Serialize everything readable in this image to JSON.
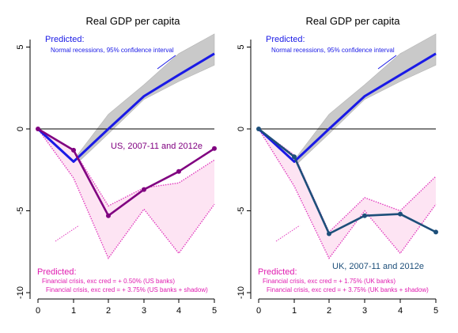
{
  "colors": {
    "band_fill": "#c9c9c9",
    "band_edge": "#b4b4b4",
    "predicted_normal": "#1a1ae6",
    "crisis_fill": "#fde4f3",
    "crisis_edge": "#e23dbf",
    "crisis_text": "#e01bb0",
    "us_series": "#800080",
    "uk_series": "#1d4f7a",
    "axis": "#000000"
  },
  "chart_data": [
    {
      "type": "line",
      "title": "Real GDP per capita",
      "x": [
        0,
        1,
        2,
        3,
        4,
        5
      ],
      "xticks": [
        "0",
        "1",
        "2",
        "3",
        "4",
        "5"
      ],
      "yticks": [
        "5",
        "0",
        "-5",
        "-10"
      ],
      "ylim": [
        -10,
        6
      ],
      "xlim": [
        0,
        5
      ],
      "zero_line": true,
      "normal_band": {
        "lower": [
          0,
          -2.3,
          -0.3,
          1.8,
          2.9,
          3.9
        ],
        "upper": [
          0,
          -1.9,
          0.9,
          2.7,
          4.6,
          5.8
        ]
      },
      "normal_recession": [
        0,
        -2.0,
        0,
        2.0,
        3.3,
        4.6
      ],
      "crisis_band": {
        "lower": [
          0,
          -3.0,
          -7.9,
          -4.9,
          -7.6,
          -4.6
        ],
        "upper": [
          0,
          -1.3,
          -4.7,
          -3.6,
          -3.3,
          -1.9
        ]
      },
      "series": [
        {
          "name": "US, 2007-11 and 2012e",
          "values": [
            0,
            -1.3,
            -5.3,
            -3.7,
            -2.6,
            -1.2
          ]
        }
      ],
      "predicted_title": "Predicted:",
      "predicted_subtitle": "Normal recessions, 95% confidence interval",
      "series_label": "US, 2007-11 and 2012e",
      "crisis_title": "Predicted:",
      "crisis_line1": "Financial crisis, exc cred = + 0.50% (US banks)",
      "crisis_line2": "Financial crisis, exc cred = + 3.75% (US banks + shadow)"
    },
    {
      "type": "line",
      "title": "Real GDP per capita",
      "x": [
        0,
        1,
        2,
        3,
        4,
        5
      ],
      "xticks": [
        "0",
        "1",
        "2",
        "3",
        "4",
        "5"
      ],
      "yticks": [
        "5",
        "0",
        "-5",
        "-10"
      ],
      "ylim": [
        -10,
        6
      ],
      "xlim": [
        0,
        5
      ],
      "zero_line": true,
      "normal_band": {
        "lower": [
          0,
          -2.3,
          -0.3,
          1.8,
          2.9,
          3.9
        ],
        "upper": [
          0,
          -1.9,
          0.9,
          2.7,
          4.6,
          5.8
        ]
      },
      "normal_recession": [
        0,
        -2.0,
        0,
        2.0,
        3.3,
        4.6
      ],
      "crisis_band": {
        "lower": [
          0,
          -3.5,
          -7.9,
          -5.0,
          -7.6,
          -4.6
        ],
        "upper": [
          0,
          -1.6,
          -6.3,
          -4.2,
          -5.0,
          -2.9
        ]
      },
      "series": [
        {
          "name": "UK, 2007-11 and 2012e",
          "values": [
            0,
            -1.7,
            -6.4,
            -5.3,
            -5.2,
            -6.3
          ]
        }
      ],
      "predicted_title": "Predicted:",
      "predicted_subtitle": "Normal recessions, 95% confidence interval",
      "series_label": "UK, 2007-11 and 2012e",
      "crisis_title": "Predicted:",
      "crisis_line1": "Financial crisis, exc cred = + 1.75% (UK banks)",
      "crisis_line2": "Financial crisis, exc cred = + 3.75% (UK banks + shadow)"
    }
  ]
}
